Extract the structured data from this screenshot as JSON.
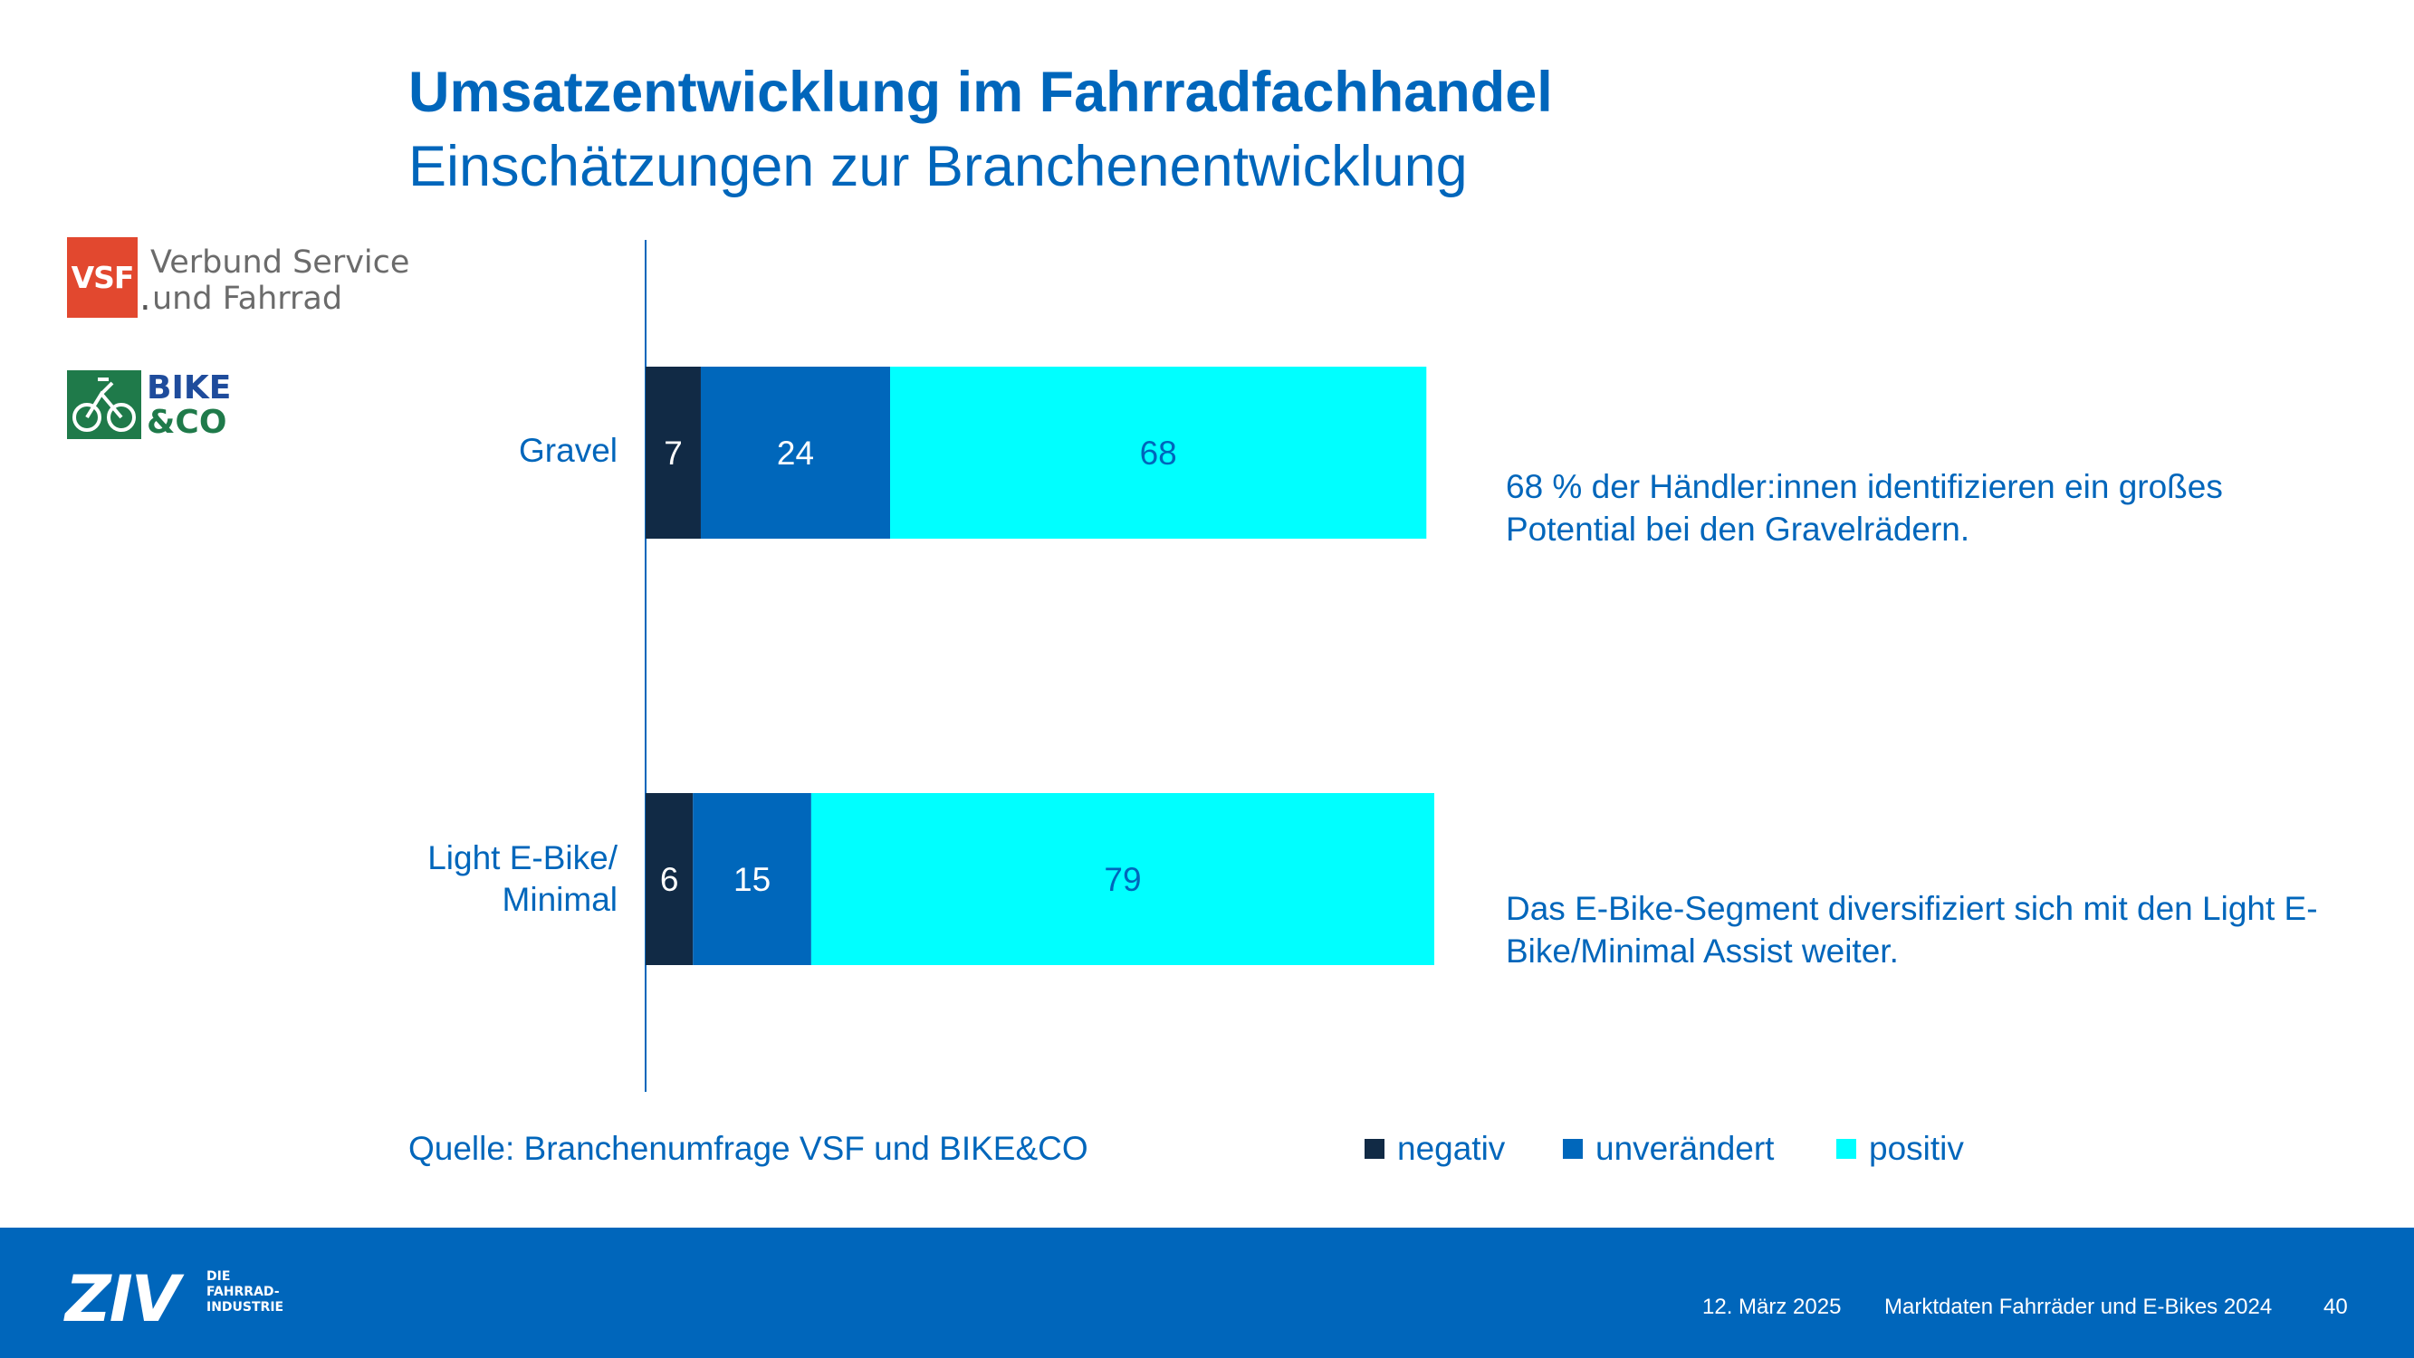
{
  "header": {
    "title": "Umsatzentwicklung im Fahrradfachhandel",
    "subtitle": "Einschätzungen zur Branchenentwicklung"
  },
  "logos": {
    "vsf": {
      "box": "VSF",
      "line1": "Verbund Service",
      "line2": "und Fahrrad"
    },
    "bikeco": {
      "line1": "BIKE",
      "line2": "&CO"
    }
  },
  "chart_data": {
    "type": "bar",
    "orientation": "horizontal",
    "stacked": true,
    "categories": [
      "Gravel",
      "Light E-Bike/ Minimal"
    ],
    "series": [
      {
        "name": "negativ",
        "values": [
          7,
          6
        ],
        "color": "#112a45",
        "label_color": "#ffffff"
      },
      {
        "name": "unverändert",
        "values": [
          24,
          15
        ],
        "color": "#0067bb",
        "label_color": "#ffffff"
      },
      {
        "name": "positiv",
        "values": [
          68,
          79
        ],
        "color": "#00ffff",
        "label_color": "#0066bb"
      }
    ],
    "legend_position": "bottom",
    "grid": false
  },
  "category_labels": {
    "gravel": "Gravel",
    "light_line1": "Light E-Bike/",
    "light_line2": "Minimal"
  },
  "annotations": {
    "gravel": "68 % der Händler:innen identifizieren ein großes Potential bei den Gravelrädern.",
    "light": "Das E-Bike-Segment diversifiziert sich mit den Light E-Bike/Minimal Assist weiter."
  },
  "source": "Quelle: Branchenumfrage VSF und BIKE&CO",
  "footer": {
    "logo_word": "ZIV",
    "logo_sub": "DIE\nFAHRRAD-\nINDUSTRIE",
    "date": "12. März 2025",
    "doc_title": "Marktdaten Fahrräder und E-Bikes 2024",
    "page": "40"
  },
  "colors": {
    "brand_blue": "#0066bb",
    "footer_bg": "#0066bb"
  }
}
